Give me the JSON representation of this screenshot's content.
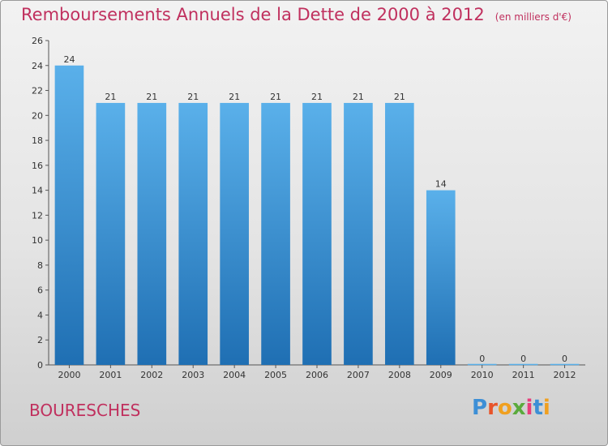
{
  "title": "Remboursements Annuels de la Dette de 2000 à 2012",
  "unit": "(en milliers d'€)",
  "commune": "BOURESCHES",
  "logo": {
    "text": "Proxiti",
    "colors": [
      "#3d8fd6",
      "#e8542a",
      "#f0a020",
      "#5aaa3c",
      "#e83d7a",
      "#3d8fd6",
      "#f0a020"
    ]
  },
  "colors": {
    "title": "#c0305e",
    "bar_top": "#5ab0ea",
    "bar_bottom": "#1f6fb3"
  },
  "chart_data": {
    "type": "bar",
    "categories": [
      "2000",
      "2001",
      "2002",
      "2003",
      "2004",
      "2005",
      "2006",
      "2007",
      "2008",
      "2009",
      "2010",
      "2011",
      "2012"
    ],
    "values": [
      24,
      21,
      21,
      21,
      21,
      21,
      21,
      21,
      21,
      14,
      0,
      0,
      0
    ],
    "ylim": [
      0,
      26
    ],
    "yticks": [
      0,
      2,
      4,
      6,
      8,
      10,
      12,
      14,
      16,
      18,
      20,
      22,
      24,
      26
    ],
    "grid": false,
    "legend": "none"
  }
}
